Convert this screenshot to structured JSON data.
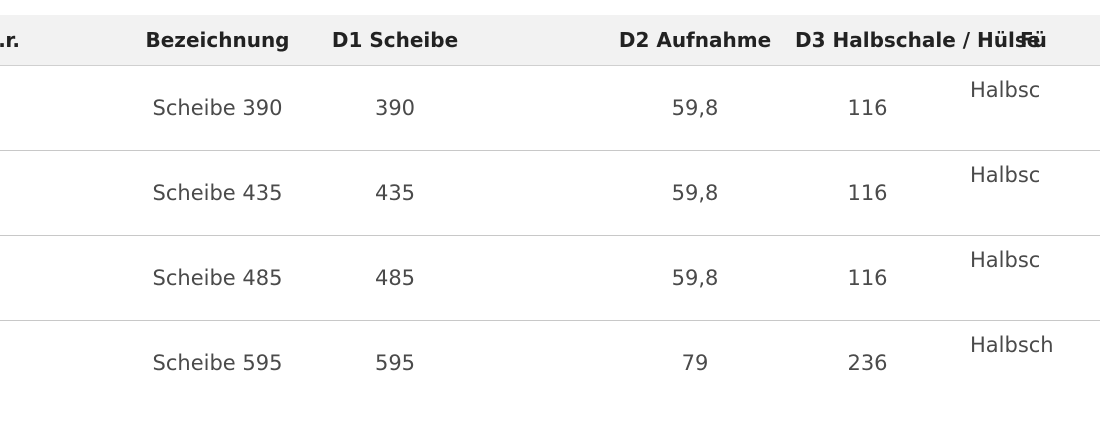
{
  "table": {
    "headers": [
      "…r.",
      "Bezeichnung",
      "D1 Scheibe",
      "D2 Aufnahme",
      "D3 Halbschale / Hülse",
      "Fü"
    ],
    "rows": [
      [
        "",
        "Scheibe 390",
        "390",
        "59,8",
        "116",
        "Halbsc"
      ],
      [
        "",
        "Scheibe 435",
        "435",
        "59,8",
        "116",
        "Halbsc"
      ],
      [
        "",
        "Scheibe 485",
        "485",
        "59,8",
        "116",
        "Halbsc"
      ],
      [
        "",
        "Scheibe 595",
        "595",
        "79",
        "236",
        "Halbsch"
      ]
    ]
  }
}
